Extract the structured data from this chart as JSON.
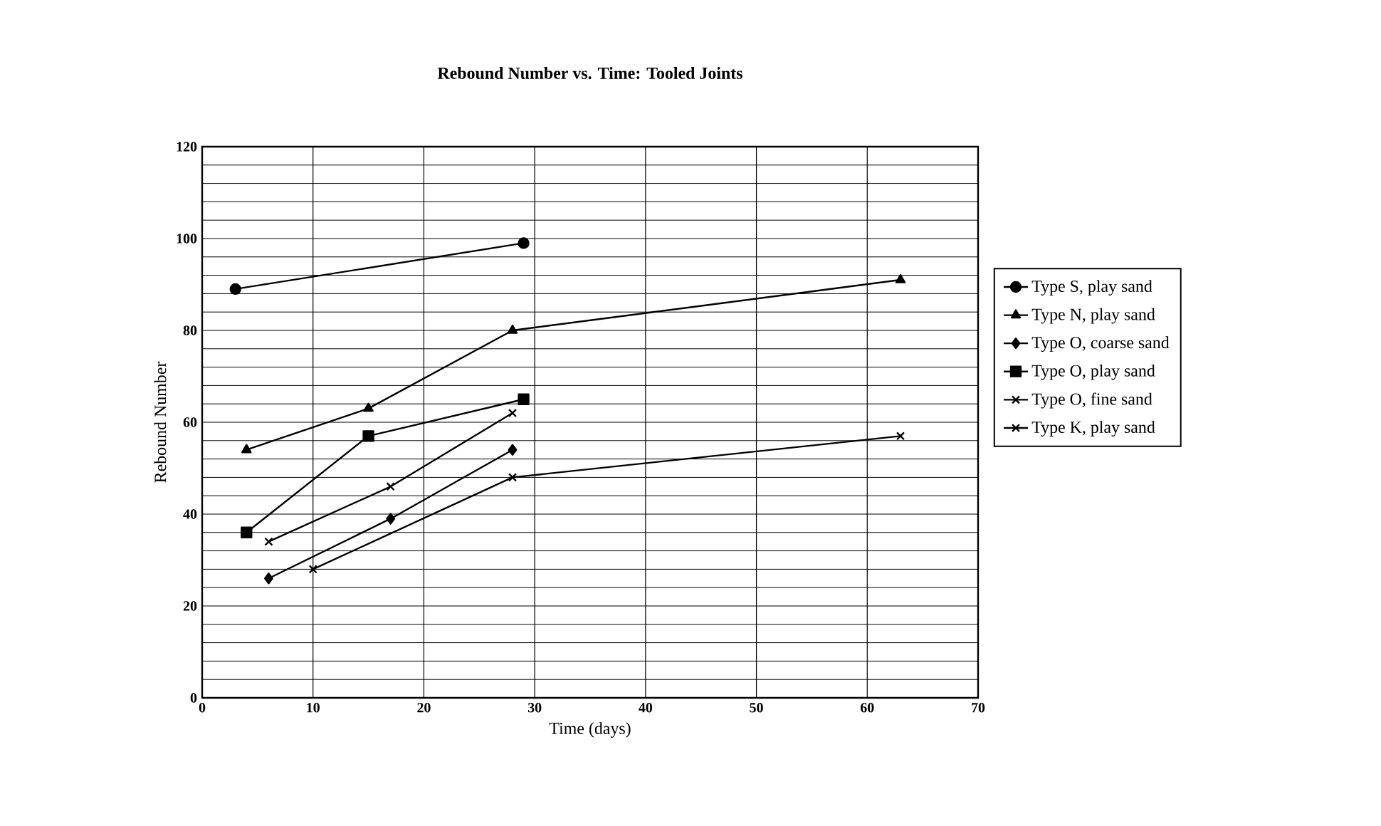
{
  "chart_data": {
    "type": "line",
    "title": "Rebound Number vs. Time:  Tooled Joints",
    "xlabel": "Time (days)",
    "ylabel": "Rebound Number",
    "xlim": [
      0,
      70
    ],
    "xticks": [
      0,
      10,
      20,
      30,
      40,
      50,
      60,
      70
    ],
    "ylim": [
      0,
      120
    ],
    "yticks": [
      0,
      20,
      40,
      60,
      80,
      100,
      120
    ],
    "grid": true,
    "legend": "right",
    "series": [
      {
        "name": "Type S, play sand",
        "color": "#000000",
        "marker": "circle",
        "x": [
          3,
          29
        ],
        "values": [
          89,
          99
        ]
      },
      {
        "name": "Type N, play sand",
        "color": "#000000",
        "marker": "triangle",
        "x": [
          4,
          15,
          28,
          63
        ],
        "values": [
          54,
          63,
          80,
          91
        ]
      },
      {
        "name": "Type O, coarse sand",
        "color": "#000000",
        "marker": "diamond",
        "x": [
          6,
          17,
          28
        ],
        "values": [
          26,
          39,
          54
        ]
      },
      {
        "name": "Type O, play sand",
        "color": "#000000",
        "marker": "square",
        "x": [
          4,
          15,
          29
        ],
        "values": [
          36,
          57,
          65
        ]
      },
      {
        "name": "Type O, fine sand",
        "color": "#000000",
        "marker": "cross",
        "x": [
          6,
          17,
          28
        ],
        "values": [
          34,
          46,
          62
        ]
      },
      {
        "name": "Type K, play sand",
        "color": "#000000",
        "marker": "cross",
        "x": [
          10,
          28,
          63
        ],
        "values": [
          28,
          48,
          57
        ]
      }
    ]
  }
}
